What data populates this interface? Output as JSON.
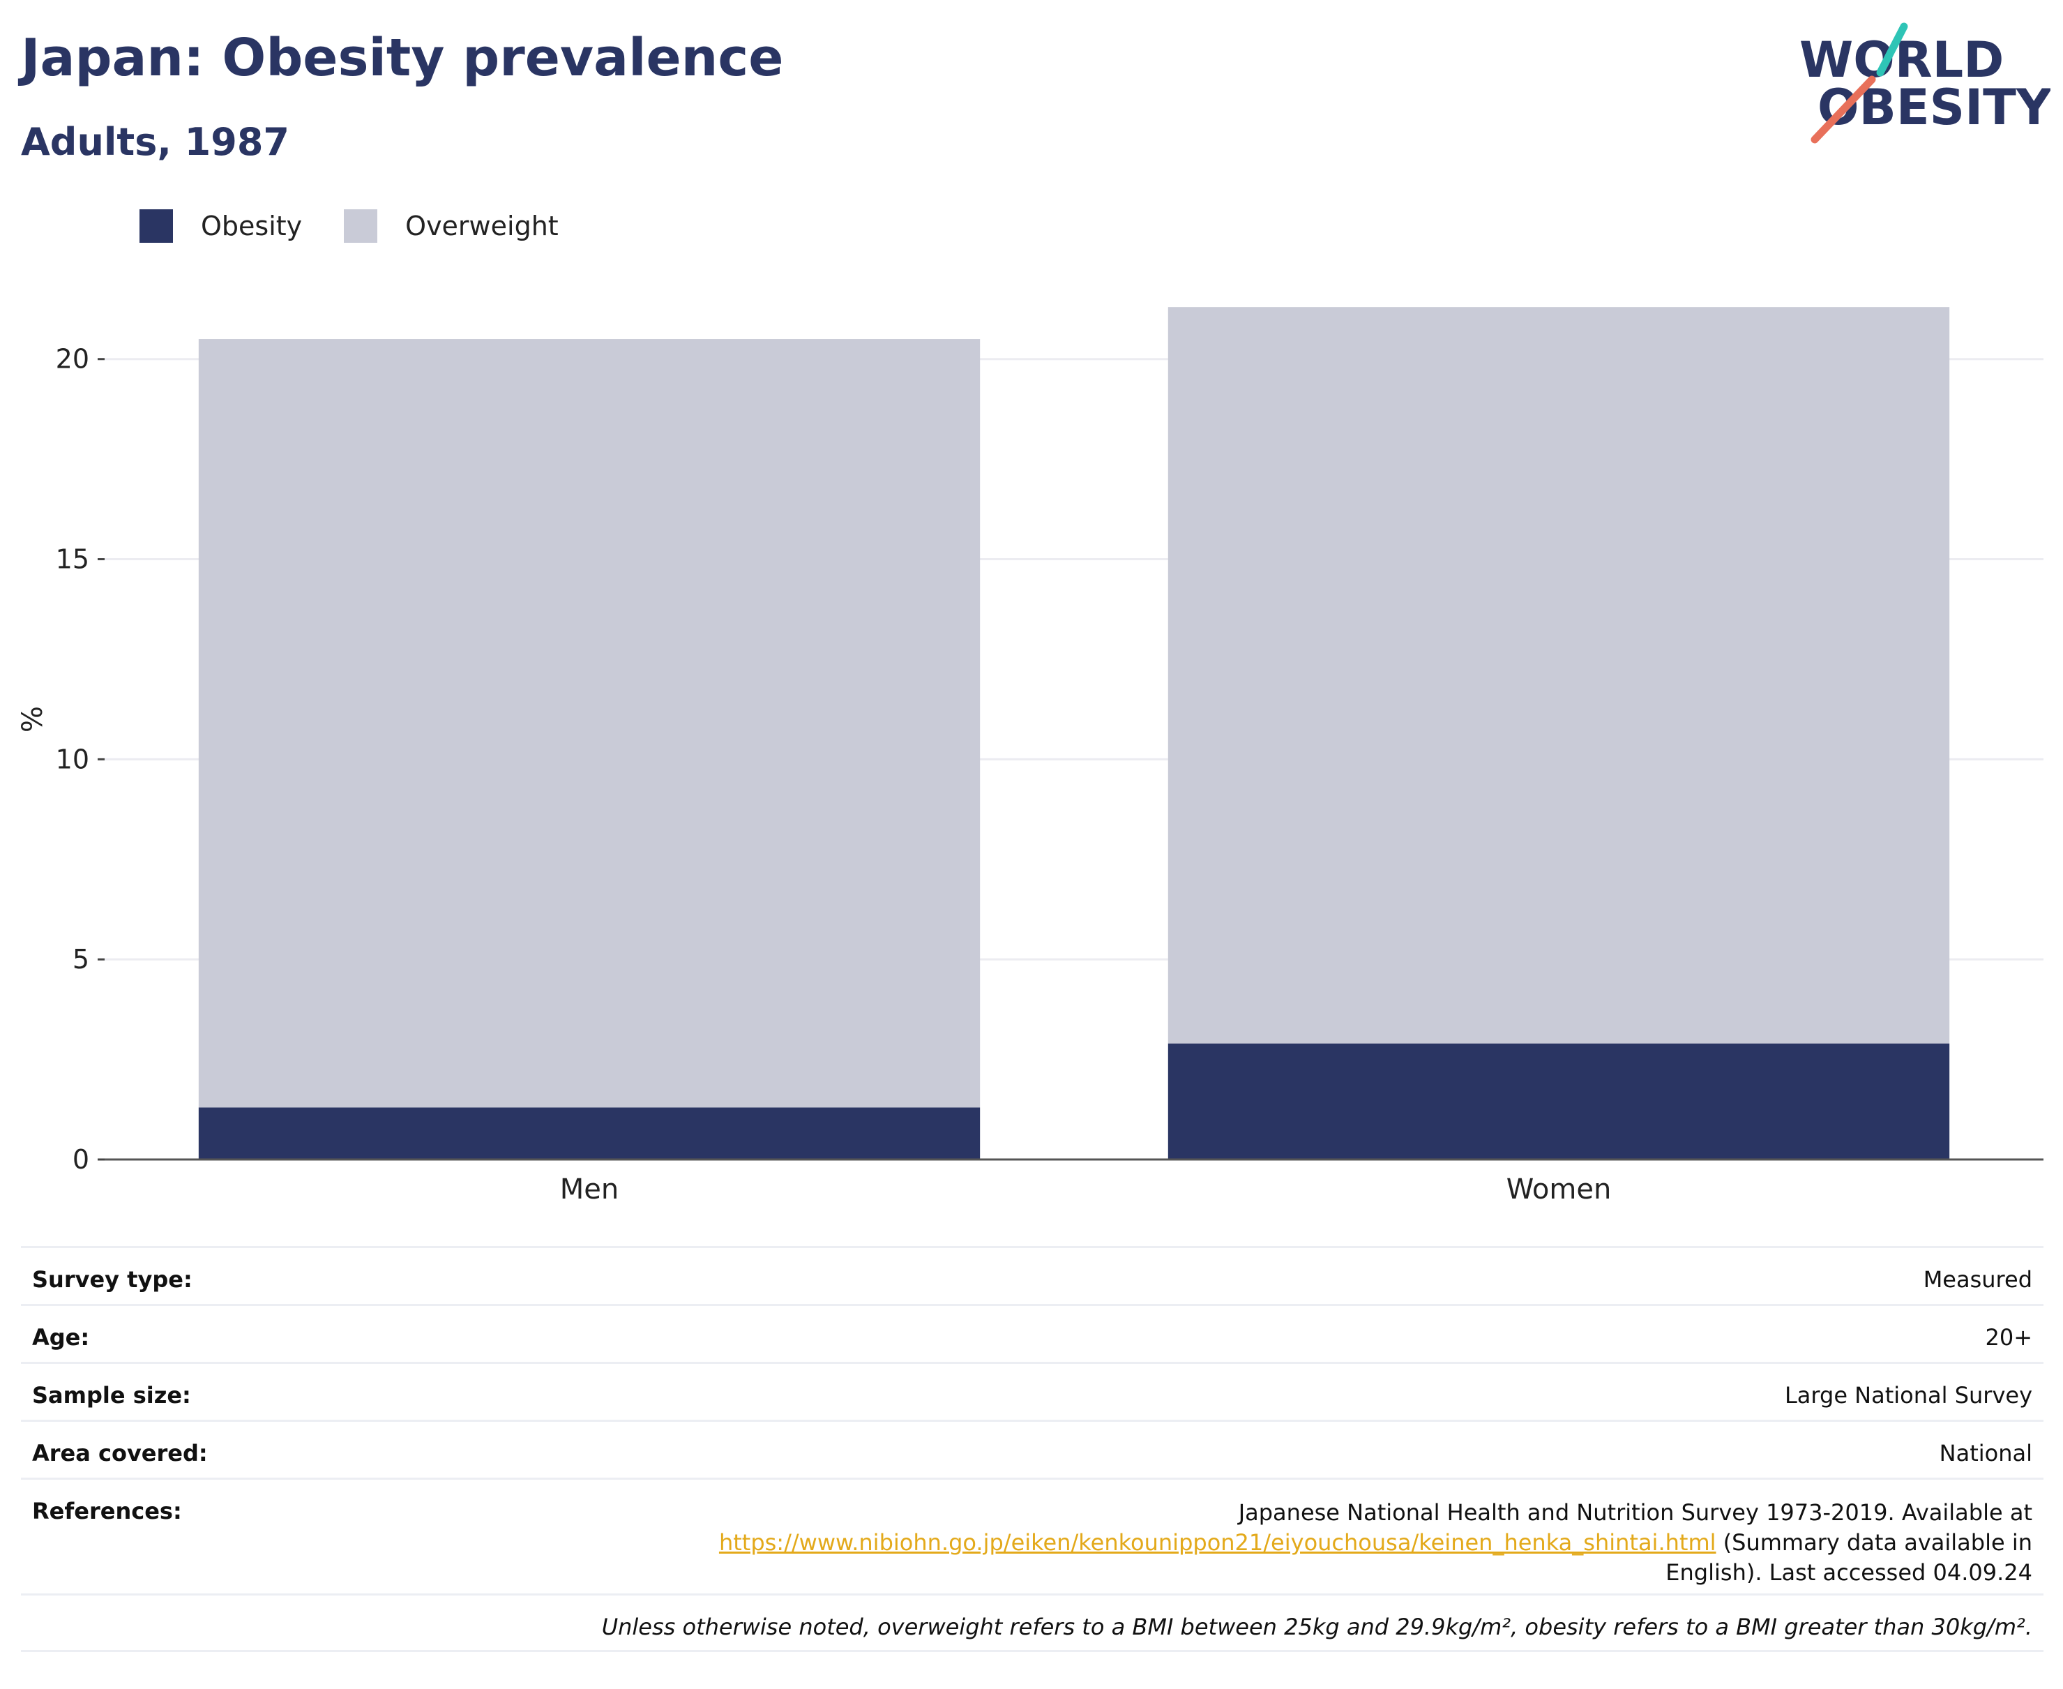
{
  "header": {
    "title": "Japan: Obesity prevalence",
    "subtitle": "Adults, 1987"
  },
  "logo": {
    "line1": "WORLD",
    "line2": "OBESITY",
    "colors": {
      "text": "#2a3563",
      "teal": "#2ec4b6",
      "coral": "#e8705a"
    }
  },
  "legend": [
    {
      "label": "Obesity",
      "color": "#2a3563"
    },
    {
      "label": "Overweight",
      "color": "#c9cbd7"
    }
  ],
  "chart_data": {
    "type": "bar",
    "stacked": true,
    "categories": [
      "Men",
      "Women"
    ],
    "series": [
      {
        "name": "Obesity",
        "color": "#2a3563",
        "values": [
          1.3,
          2.9
        ]
      },
      {
        "name": "Overweight",
        "color": "#c9cbd7",
        "values": [
          19.2,
          18.4
        ]
      }
    ],
    "ylabel": "%",
    "ylim": [
      0,
      22
    ],
    "yticks": [
      0,
      5,
      10,
      15,
      20
    ],
    "grid": true,
    "legend_position": "top-left"
  },
  "meta": {
    "rows": [
      {
        "key": "Survey type:",
        "value": "Measured"
      },
      {
        "key": "Age:",
        "value": "20+"
      },
      {
        "key": "Sample size:",
        "value": "Large National Survey"
      },
      {
        "key": "Area covered:",
        "value": "National"
      }
    ],
    "references": {
      "key": "References:",
      "text_before": "Japanese National Health and Nutrition Survey 1973-2019. Available at",
      "link": "https://www.nibiohn.go.jp/eiken/kenkounippon21/eiyouchousa/keinen_henka_shintai.html",
      "text_after": "(Summary data available in English). Last accessed 04.09.24"
    },
    "footnote": "Unless otherwise noted, overweight refers to a BMI between 25kg and 29.9kg/m², obesity refers to a BMI greater than 30kg/m²."
  }
}
